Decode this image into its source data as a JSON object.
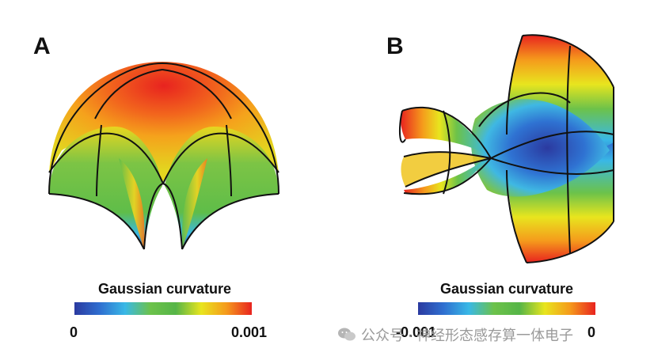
{
  "panels": {
    "a": {
      "label": "A"
    },
    "b": {
      "label": "B"
    }
  },
  "colorbars": {
    "a": {
      "title": "Gaussian curvature",
      "min_label": "0",
      "max_label": "0.001"
    },
    "b": {
      "title": "Gaussian curvature",
      "min_label": "-0.001",
      "max_label": "0"
    }
  },
  "colormap": [
    "#2b3aa0",
    "#2f6fd0",
    "#39b8e6",
    "#6cc24a",
    "#56b548",
    "#e8e51e",
    "#f59a1c",
    "#e8231f"
  ],
  "watermark": {
    "text": "公众号 · 神经形态感存算一体电子",
    "icon": "wechat-icon"
  }
}
